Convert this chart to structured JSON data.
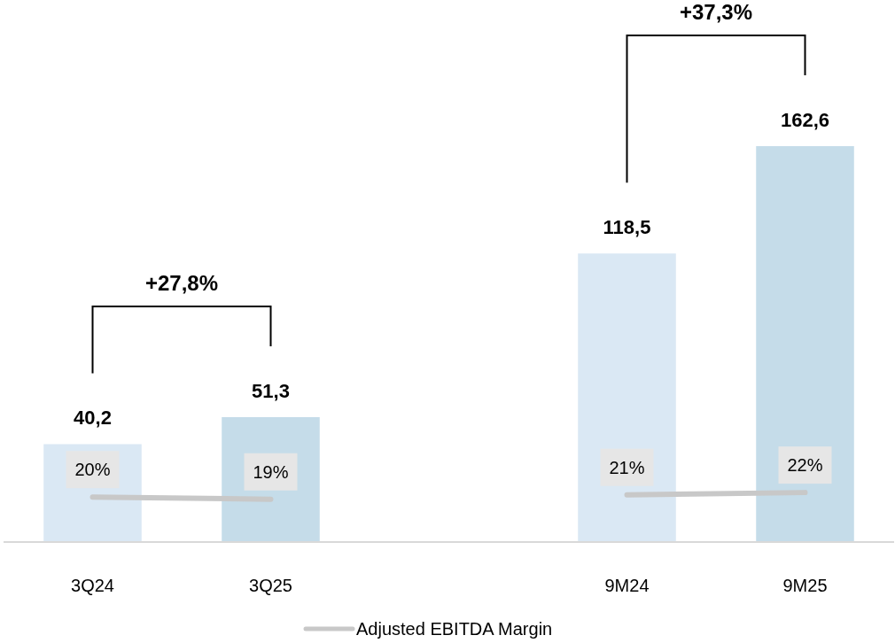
{
  "chart_data": {
    "type": "bar",
    "categories": [
      "3Q24",
      "3Q25",
      null,
      "9M24",
      "9M25"
    ],
    "series": [
      {
        "colors": [
          "#dae8f4",
          "#c5dce9",
          null,
          "#dae8f4",
          "#c5dce9"
        ],
        "values": [
          40.2,
          51.3,
          null,
          118.5,
          162.6
        ],
        "value_labels": [
          "40,2",
          "51,3",
          null,
          "118,5",
          "162,6"
        ]
      },
      {
        "type": "line",
        "axis": "y2",
        "name": "Adjusted EBITDA Margin",
        "color": "#c8c8c8",
        "values": [
          20,
          19,
          null,
          21,
          22
        ],
        "value_labels": [
          "20%",
          "19%",
          null,
          "21%",
          "22%"
        ]
      }
    ],
    "annotations": [
      "+27,8%",
      "+37,3%"
    ],
    "legend": "bottom"
  }
}
